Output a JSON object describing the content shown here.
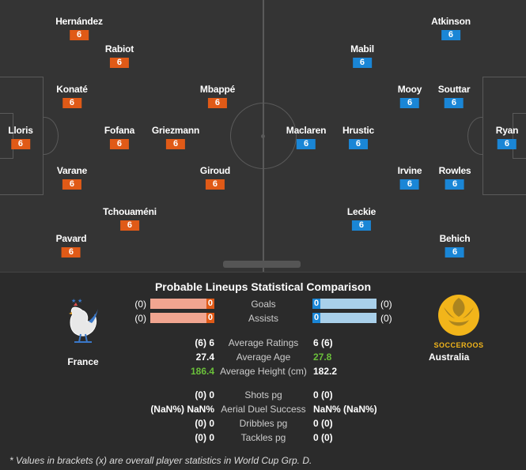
{
  "pitch": {
    "home_players": [
      {
        "name": "Hernández",
        "rating": "6"
      },
      {
        "name": "Rabiot",
        "rating": "6"
      },
      {
        "name": "Konaté",
        "rating": "6"
      },
      {
        "name": "Mbappé",
        "rating": "6"
      },
      {
        "name": "Lloris",
        "rating": "6"
      },
      {
        "name": "Fofana",
        "rating": "6"
      },
      {
        "name": "Griezmann",
        "rating": "6"
      },
      {
        "name": "Varane",
        "rating": "6"
      },
      {
        "name": "Giroud",
        "rating": "6"
      },
      {
        "name": "Tchouaméni",
        "rating": "6"
      },
      {
        "name": "Pavard",
        "rating": "6"
      }
    ],
    "away_players": [
      {
        "name": "Atkinson",
        "rating": "6"
      },
      {
        "name": "Mabil",
        "rating": "6"
      },
      {
        "name": "Mooy",
        "rating": "6"
      },
      {
        "name": "Souttar",
        "rating": "6"
      },
      {
        "name": "Maclaren",
        "rating": "6"
      },
      {
        "name": "Hrustic",
        "rating": "6"
      },
      {
        "name": "Ryan",
        "rating": "6"
      },
      {
        "name": "Irvine",
        "rating": "6"
      },
      {
        "name": "Rowles",
        "rating": "6"
      },
      {
        "name": "Leckie",
        "rating": "6"
      },
      {
        "name": "Behich",
        "rating": "6"
      }
    ]
  },
  "comparison": {
    "title": "Probable Lineups Statistical Comparison",
    "home_team": "France",
    "away_team": "Australia",
    "away_logo_text": "SOCCEROOS",
    "bar_rows": [
      {
        "label": "Goals",
        "home_bracket": "(0)",
        "home_value": "0",
        "away_value": "0",
        "away_bracket": "(0)"
      },
      {
        "label": "Assists",
        "home_bracket": "(0)",
        "home_value": "0",
        "away_value": "0",
        "away_bracket": "(0)"
      }
    ],
    "rows": [
      {
        "label": "Average Ratings",
        "home": "(6) 6",
        "away": "6 (6)"
      },
      {
        "label": "Average Age",
        "home": "27.4",
        "away": "27.8"
      },
      {
        "label": "Average Height (cm)",
        "home": "186.4",
        "away": "182.2"
      },
      {
        "label": "Shots pg",
        "home": "(0) 0",
        "away": "0 (0)"
      },
      {
        "label": "Aerial Duel Success",
        "home": "(NaN%) NaN%",
        "away": "NaN% (NaN%)"
      },
      {
        "label": "Dribbles pg",
        "home": "(0) 0",
        "away": "0 (0)"
      },
      {
        "label": "Tackles pg",
        "home": "(0) 0",
        "away": "0 (0)"
      }
    ],
    "highlight_color": "#6abf3a",
    "home_color": "#e05a17",
    "away_color": "#1a86d6",
    "footnote": "* Values in brackets (x) are overall player statistics in World Cup Grp. D."
  }
}
